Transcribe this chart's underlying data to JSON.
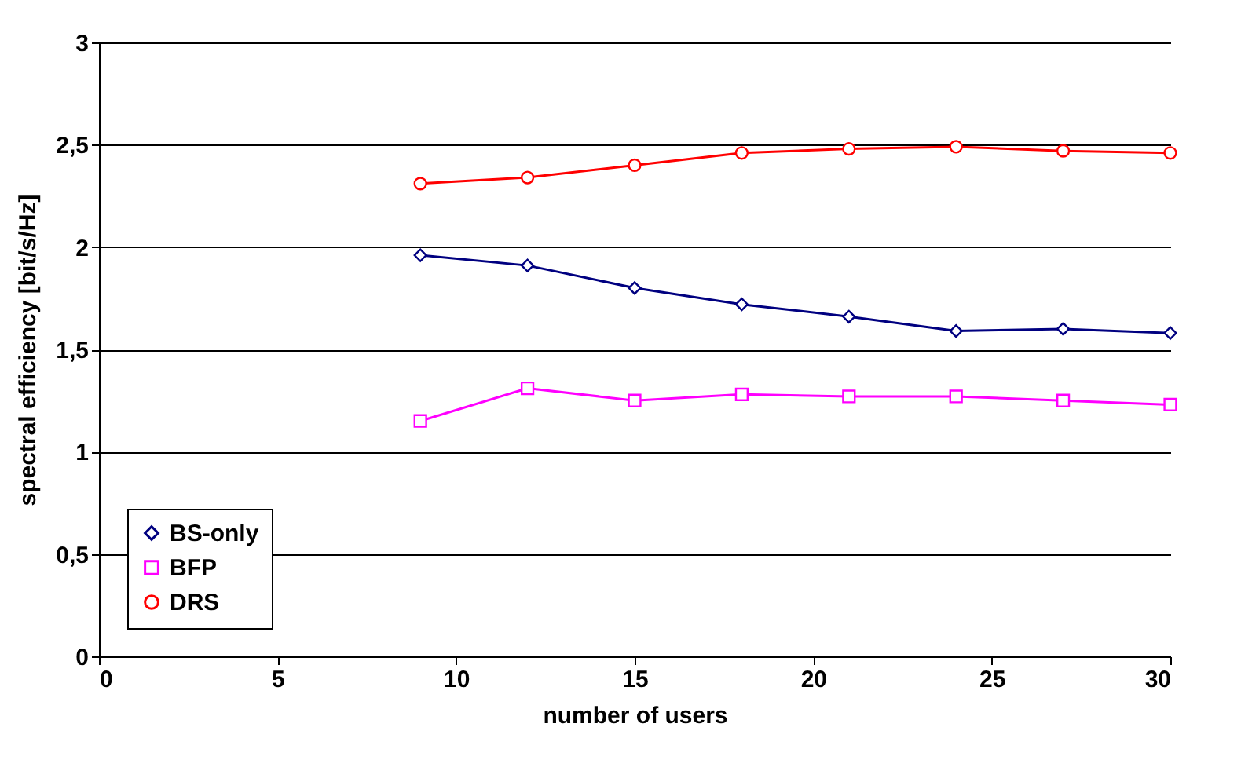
{
  "chart_data": {
    "type": "line",
    "xlabel": "number of users",
    "ylabel": "spectral efficiency [bit/s/Hz]",
    "x": [
      9,
      12,
      15,
      18,
      21,
      24,
      27,
      30
    ],
    "series": [
      {
        "name": "BS-only",
        "color": "#000080",
        "marker": "diamond",
        "values": [
          1.96,
          1.91,
          1.8,
          1.72,
          1.66,
          1.59,
          1.6,
          1.58
        ]
      },
      {
        "name": "BFP",
        "color": "#ff00ff",
        "marker": "square",
        "values": [
          1.15,
          1.31,
          1.25,
          1.28,
          1.27,
          1.27,
          1.25,
          1.23
        ]
      },
      {
        "name": "DRS",
        "color": "#ff0000",
        "marker": "circle",
        "values": [
          2.31,
          2.34,
          2.4,
          2.46,
          2.48,
          2.49,
          2.47,
          2.46
        ]
      }
    ],
    "xlim": [
      0,
      30
    ],
    "xticks": [
      0,
      5,
      10,
      15,
      20,
      25,
      30
    ],
    "ylim": [
      0,
      3
    ],
    "yticks": [
      0,
      {
        "value": 0.5,
        "label": "0,5"
      },
      1,
      {
        "value": 1.5,
        "label": "1,5"
      },
      2,
      {
        "value": 2.5,
        "label": "2,5"
      },
      3
    ],
    "grid": "y",
    "legend": "bottom left",
    "line_style": "solid"
  }
}
